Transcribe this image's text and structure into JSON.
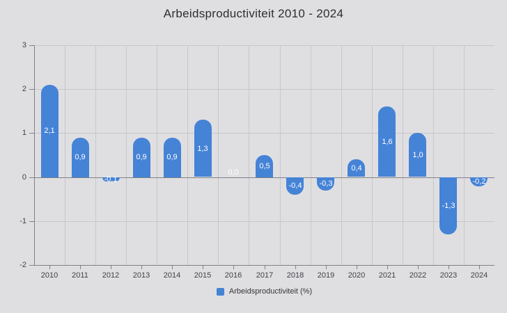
{
  "title": "Arbeidsproductiviteit 2010 - 2024",
  "legend": {
    "label": "Arbeidsproductiviteit (%)"
  },
  "colors": {
    "background": "#dfdfe2",
    "bar": "#4583d6",
    "grid": "#c7c7cc",
    "axis": "#808087",
    "title_text": "#2d2d32",
    "tick_text": "#3f3f45",
    "bar_label_text": "#ffffff"
  },
  "chart_data": {
    "type": "bar",
    "title": "Arbeidsproductiviteit 2010 - 2024",
    "series_name": "Arbeidsproductiviteit (%)",
    "categories": [
      "2010",
      "2011",
      "2012",
      "2013",
      "2014",
      "2015",
      "2016",
      "2017",
      "2018",
      "2019",
      "2020",
      "2021",
      "2022",
      "2023",
      "2024"
    ],
    "values": [
      2.1,
      0.9,
      -0.1,
      0.9,
      0.9,
      1.3,
      0.0,
      0.5,
      -0.4,
      -0.3,
      0.4,
      1.6,
      1.0,
      -1.3,
      -0.2
    ],
    "value_labels": [
      "2,1",
      "0,9",
      "-0,1",
      "0,9",
      "0,9",
      "1,3",
      "0,0",
      "0,5",
      "-0,4",
      "-0,3",
      "0,4",
      "1,6",
      "1,0",
      "-1,3",
      "-0,2"
    ],
    "xlabel": "",
    "ylabel": "",
    "ylim": [
      -2,
      3
    ],
    "y_ticks": [
      3,
      2,
      1,
      0,
      -1,
      -2
    ],
    "y_tick_labels": [
      "3",
      "2",
      "1",
      "0",
      "-1",
      "-2"
    ],
    "grid": true,
    "legend_position": "bottom"
  }
}
